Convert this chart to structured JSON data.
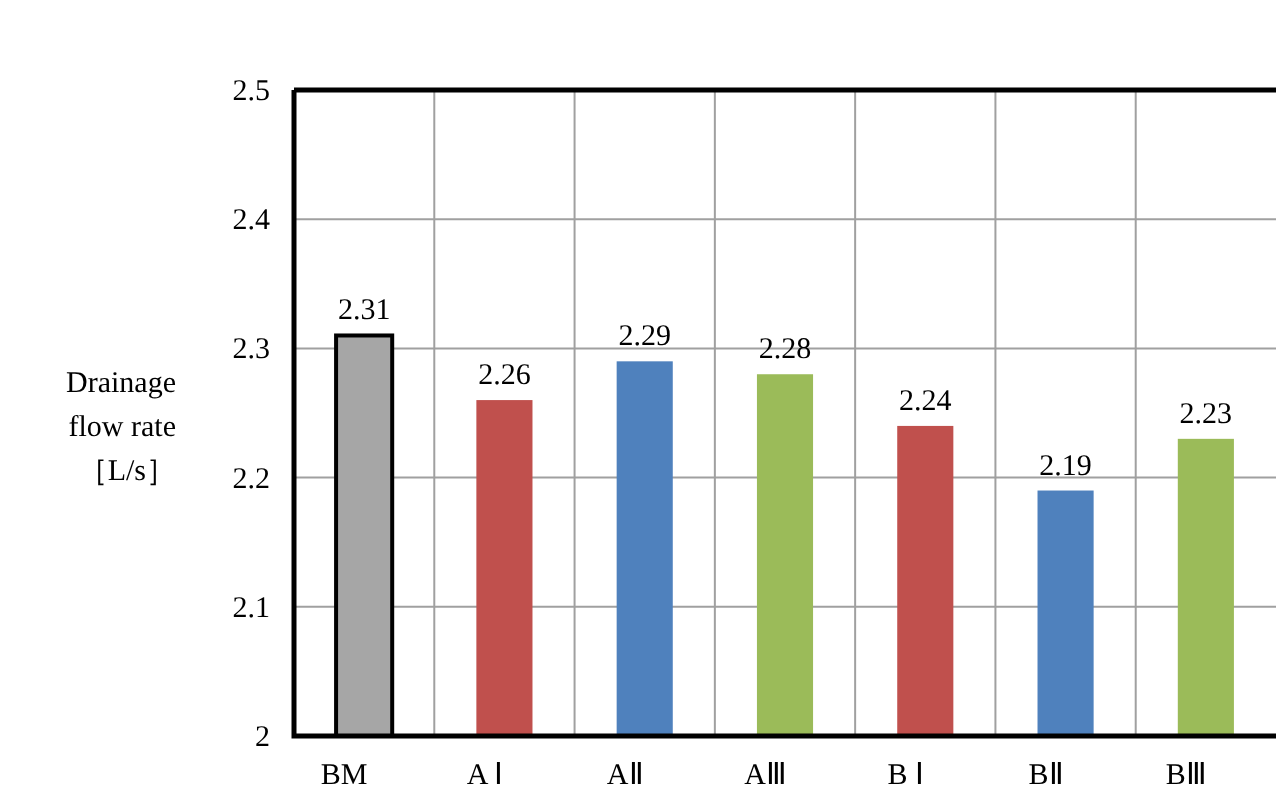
{
  "chart_data": {
    "type": "bar",
    "ylabel": "Drainage flow rate ［L/s］",
    "categories": [
      "BM",
      "A Ⅰ",
      "AⅡ",
      "AⅢ",
      "B Ⅰ",
      "BⅡ",
      "BⅢ"
    ],
    "values": [
      2.31,
      2.26,
      2.29,
      2.28,
      2.24,
      2.19,
      2.23
    ],
    "colors": [
      "#a6a6a6",
      "#c0504d",
      "#4f81bd",
      "#9bbb59",
      "#c0504d",
      "#4f81bd",
      "#9bbb59"
    ],
    "ylim": [
      2,
      2.5
    ],
    "yticks": [
      2,
      2.1,
      2.2,
      2.3,
      2.4,
      2.5
    ],
    "grid": true,
    "data_labels": true
  }
}
